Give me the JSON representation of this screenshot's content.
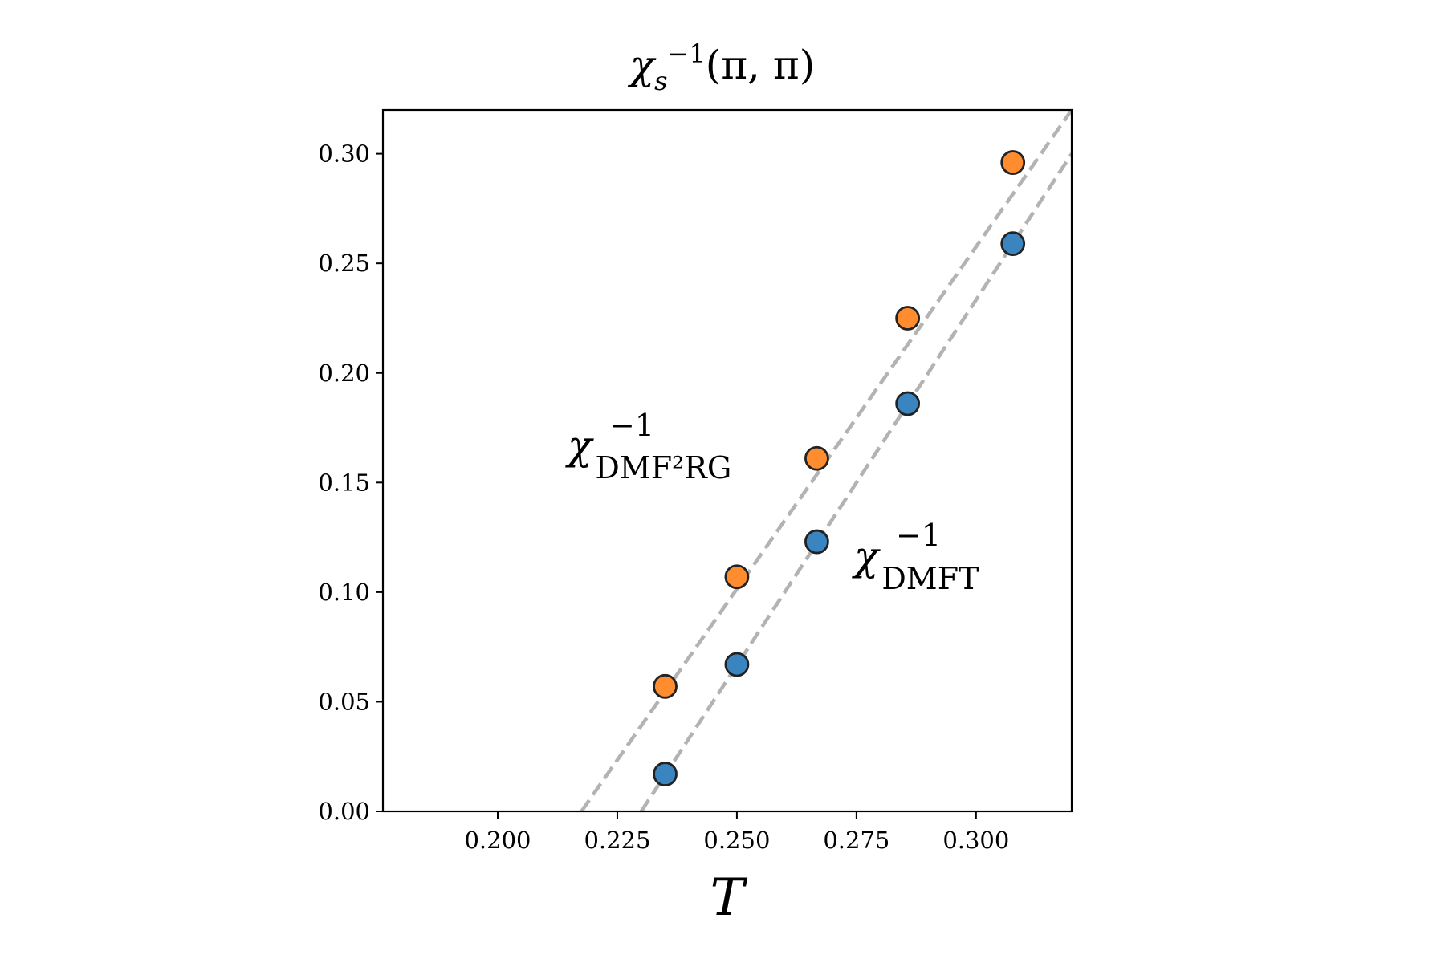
{
  "chart_data": {
    "type": "scatter",
    "title": {
      "base": "χ",
      "sub": "s",
      "sup": "−1",
      "args": "(π, π)"
    },
    "xlabel": "T",
    "ylabel": "",
    "xlim": [
      0.176,
      0.32
    ],
    "ylim": [
      0.0,
      0.32
    ],
    "xticks": [
      0.2,
      0.225,
      0.25,
      0.275,
      0.3
    ],
    "xtick_labels": [
      "0.200",
      "0.225",
      "0.250",
      "0.275",
      "0.300"
    ],
    "yticks": [
      0.0,
      0.05,
      0.1,
      0.15,
      0.2,
      0.25,
      0.3
    ],
    "ytick_labels": [
      "0.00",
      "0.05",
      "0.10",
      "0.15",
      "0.20",
      "0.25",
      "0.30"
    ],
    "grid": false,
    "series": [
      {
        "label": {
          "base": "χ",
          "sub": "DMF²RG",
          "sup": "−1"
        },
        "color": "#ff8c2e",
        "x": [
          0.235,
          0.25,
          0.2667,
          0.2857,
          0.3077
        ],
        "y": [
          0.057,
          0.107,
          0.161,
          0.225,
          0.296
        ]
      },
      {
        "label": {
          "base": "χ",
          "sub": "DMFT",
          "sup": "−1"
        },
        "color": "#3a84c0",
        "x": [
          0.235,
          0.25,
          0.2667,
          0.2857,
          0.3077
        ],
        "y": [
          0.017,
          0.067,
          0.123,
          0.186,
          0.259
        ]
      }
    ],
    "fit_lines": [
      {
        "color": "#b3b3b3",
        "style": "dashed",
        "x": [
          0.2175,
          0.32
        ],
        "y": [
          0.0,
          0.32
        ]
      },
      {
        "color": "#b3b3b3",
        "style": "dashed",
        "x": [
          0.23,
          0.32
        ],
        "y": [
          0.0,
          0.3
        ]
      }
    ],
    "marker_edge_color": "#222222"
  }
}
